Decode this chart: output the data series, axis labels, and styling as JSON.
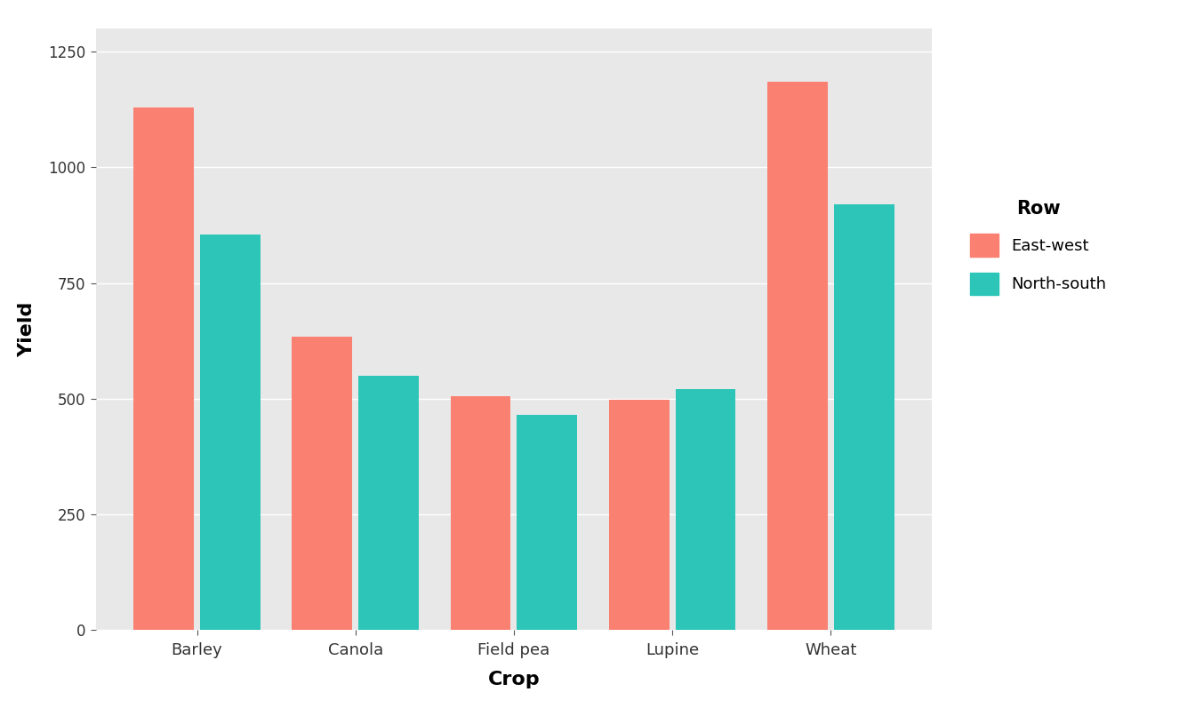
{
  "crops": [
    "Barley",
    "Canola",
    "Field pea",
    "Lupine",
    "Wheat"
  ],
  "east_west": [
    1130,
    635,
    505,
    498,
    1185
  ],
  "north_south": [
    855,
    550,
    465,
    520,
    920
  ],
  "color_east_west": "#FA8072",
  "color_north_south": "#2DC5B8",
  "xlabel": "Crop",
  "ylabel": "Yield",
  "legend_title": "Row",
  "legend_labels": [
    "East-west",
    "North-south"
  ],
  "ylim": [
    0,
    1300
  ],
  "yticks": [
    0,
    250,
    500,
    750,
    1000,
    1250
  ],
  "plot_bg_color": "#E8E8E8",
  "fig_bg_color": "#FFFFFF",
  "bar_width": 0.38,
  "bar_gap": 0.04
}
